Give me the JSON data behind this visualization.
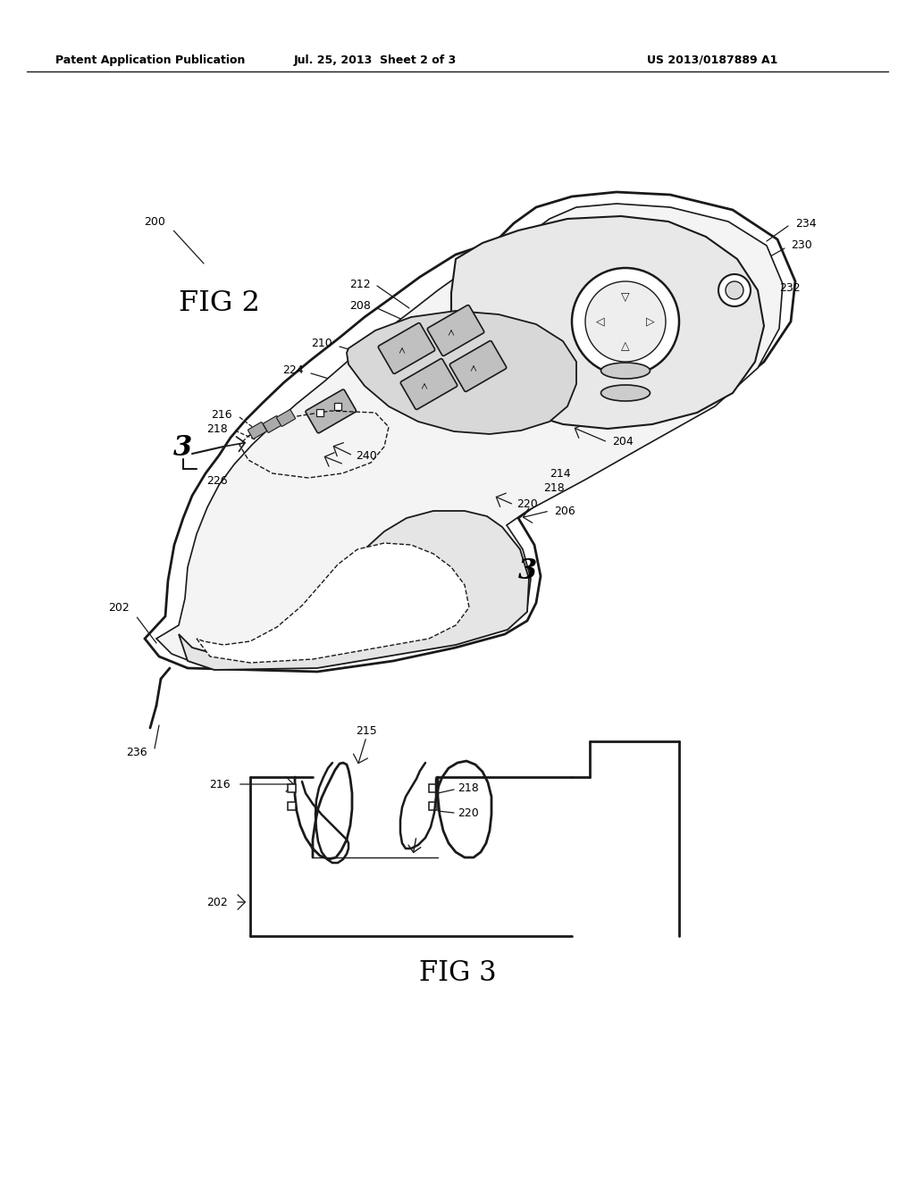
{
  "background_color": "#ffffff",
  "header_left": "Patent Application Publication",
  "header_center": "Jul. 25, 2013  Sheet 2 of 3",
  "header_right": "US 2013/0187889 A1",
  "line_color": "#1a1a1a",
  "text_color": "#000000",
  "fig2_label": "FIG 2",
  "fig3_label": "FIG 3"
}
